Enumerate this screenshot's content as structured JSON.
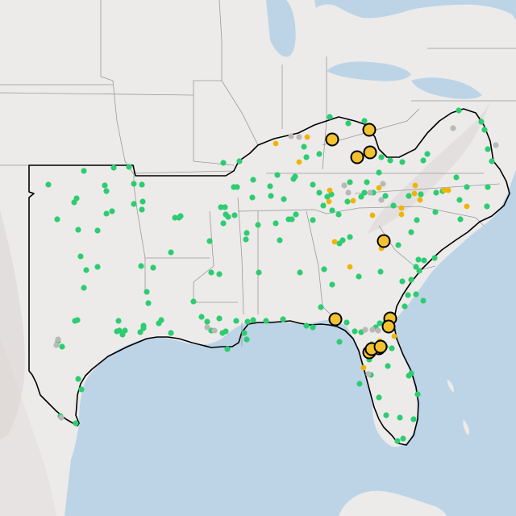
{
  "map": {
    "colors": {
      "water": "#bcd4e6",
      "land": "#ecebea",
      "land_outside_region": "#e6e3e2",
      "terrain_shade": "#dcd6d4",
      "state_border": "#9a9a9a",
      "region_outline": "#000000",
      "lake": "#bcd4e6"
    },
    "legend": null,
    "point_styles": {
      "green": {
        "fill": "#2ecc71",
        "kind": "small-dot"
      },
      "grey": {
        "fill": "#b8b8b8",
        "kind": "small-dot"
      },
      "yellow_small": {
        "fill": "#f0b400",
        "kind": "small-dot"
      },
      "yellow_large": {
        "fill": "#f2c230",
        "stroke": "#000000",
        "kind": "large-circle"
      }
    },
    "point_categories": [
      "green",
      "grey",
      "yellow_small",
      "yellow_large"
    ],
    "point_counts": {
      "green": 185,
      "grey": 18,
      "yellow_small": 22,
      "yellow_large": 12
    }
  }
}
